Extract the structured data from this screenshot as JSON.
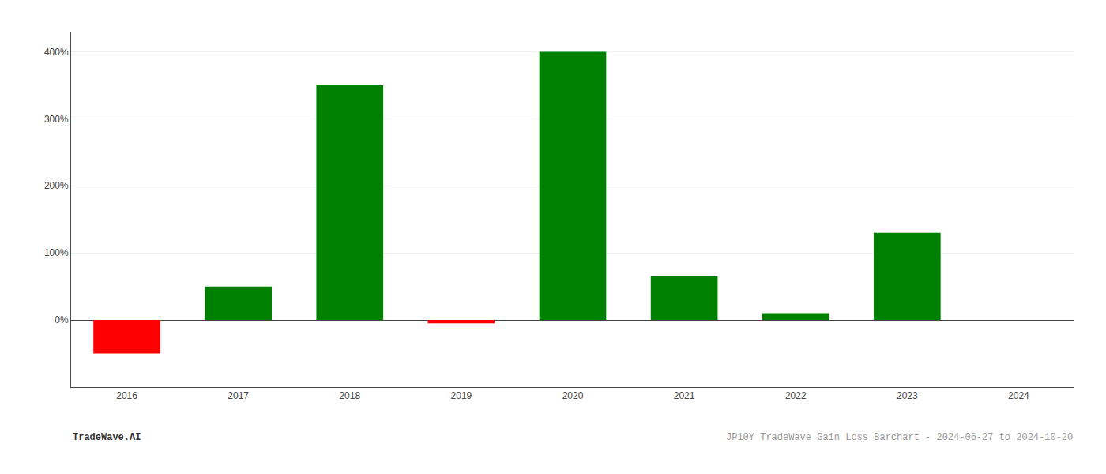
{
  "chart_data": {
    "type": "bar",
    "title": "JP10Y TradeWave Gain Loss Barchart - 2024-06-27 to 2024-10-20",
    "annotations": [
      "TradeWave.AI"
    ],
    "categories": [
      "2016",
      "2017",
      "2018",
      "2019",
      "2020",
      "2021",
      "2022",
      "2023",
      "2024"
    ],
    "values": [
      -50,
      50,
      350,
      -5,
      400,
      65,
      10,
      130,
      0
    ],
    "colors": [
      "red",
      "green",
      "green",
      "red",
      "green",
      "green",
      "green",
      "green",
      "green"
    ],
    "ylim": [
      -100,
      430
    ],
    "yticks": [
      {
        "value": 0,
        "label": "0%"
      },
      {
        "value": 100,
        "label": "100%"
      },
      {
        "value": 200,
        "label": "200%"
      },
      {
        "value": 300,
        "label": "300%"
      },
      {
        "value": 400,
        "label": "400%"
      }
    ],
    "grid": true
  }
}
